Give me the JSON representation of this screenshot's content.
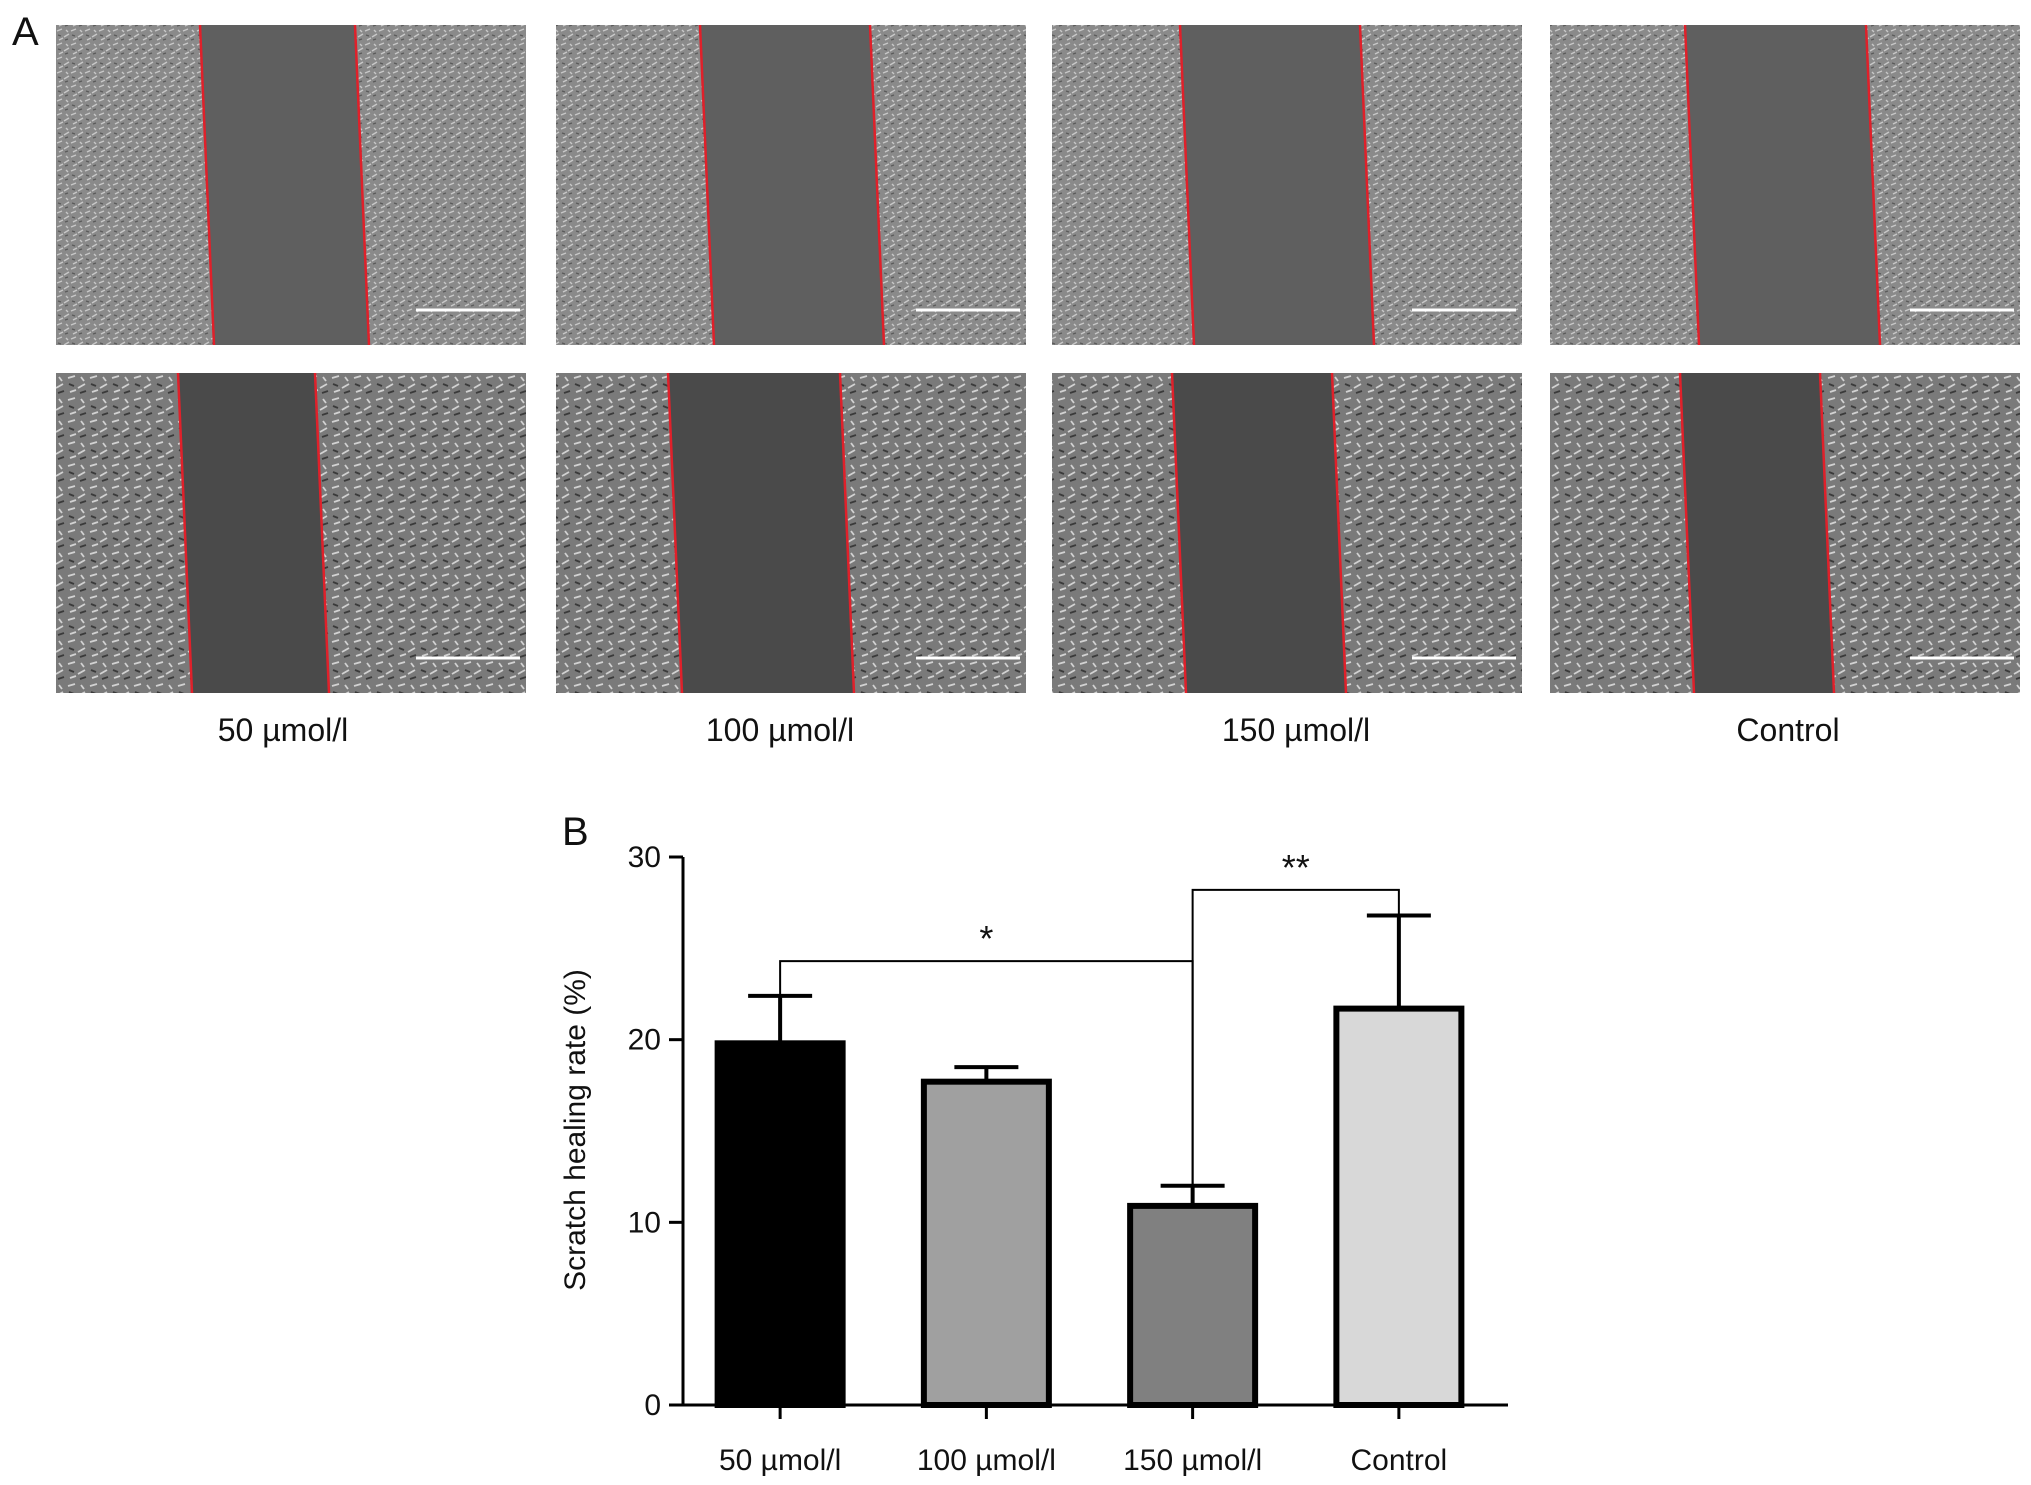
{
  "panel_a": {
    "letter": "A",
    "groups": [
      "50 µmol/l",
      "100 µmol/l",
      "150 µmol/l",
      "Control"
    ]
  },
  "panel_b": {
    "letter": "B"
  },
  "chart_data": {
    "type": "bar",
    "categories": [
      "50 µmol/l",
      "100 µmol/l",
      "150 µmol/l",
      "Control"
    ],
    "values": [
      19.8,
      17.7,
      10.9,
      21.7
    ],
    "errors": [
      2.6,
      0.8,
      1.1,
      5.1
    ],
    "colors": [
      "#000000",
      "#a0a0a0",
      "#808080",
      "#d8d8d8"
    ],
    "ylabel": "Scratch healing rate (%)",
    "xlabel": "",
    "ylim": [
      0,
      30
    ],
    "yticks": [
      0,
      10,
      20,
      30
    ],
    "significance": [
      {
        "from": "50 µmol/l",
        "to": "150 µmol/l",
        "label": "*"
      },
      {
        "from": "150 µmol/l",
        "to": "Control",
        "label": "**"
      }
    ]
  }
}
